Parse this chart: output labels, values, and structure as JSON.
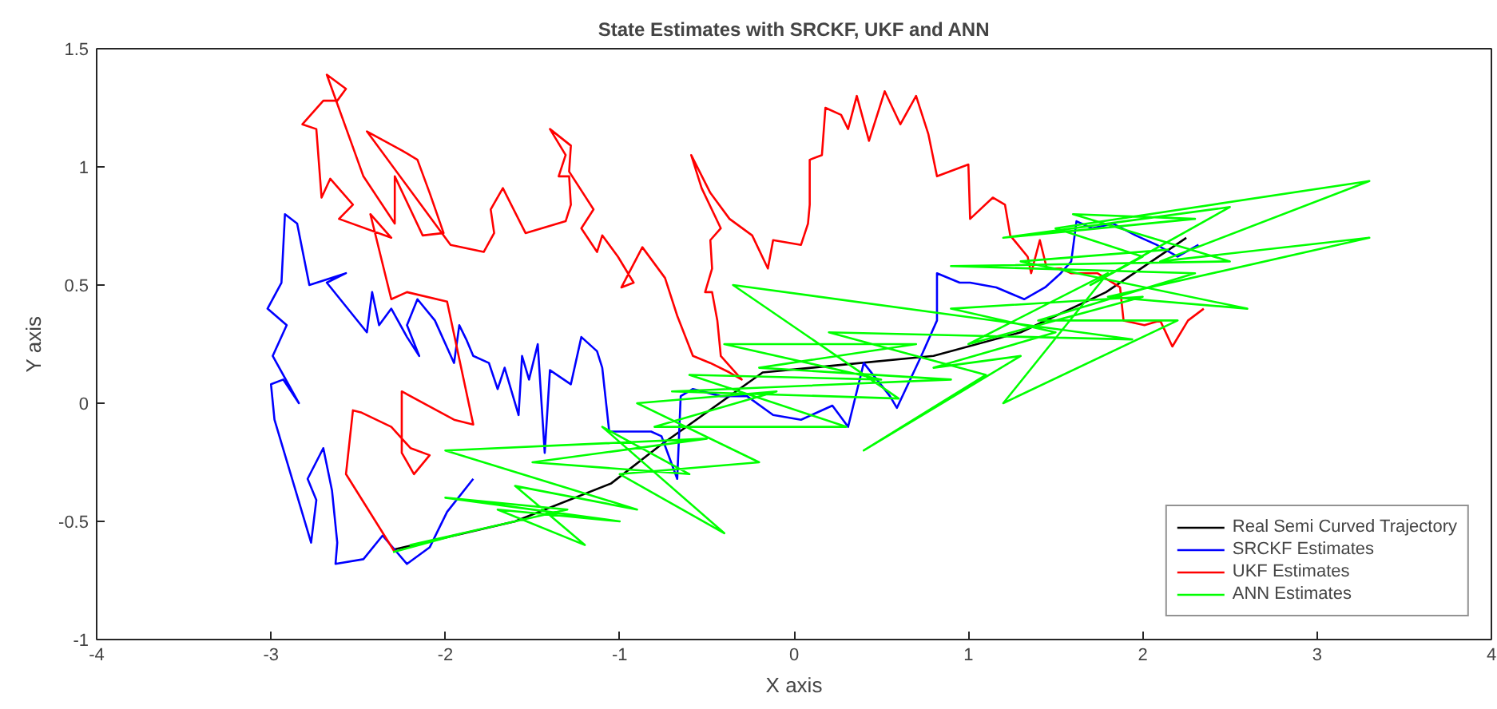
{
  "chart_data": {
    "type": "line",
    "title": "State Estimates with SRCKF, UKF and ANN",
    "xlabel": "X axis",
    "ylabel": "Y axis",
    "xlim": [
      -4,
      4
    ],
    "xticks": [
      -4,
      -3,
      -2,
      -1,
      0,
      1,
      2,
      3,
      4
    ],
    "ylim": [
      -1,
      1.5
    ],
    "yticks": [
      -1,
      -0.5,
      0,
      0.5,
      1,
      1.5
    ],
    "grid": false,
    "legend": "bottom right",
    "line_style": "solid",
    "series": [
      {
        "name": "Real Semi Curved Trajectory",
        "color": "#000000",
        "x": [
          -2.3,
          -1.6,
          -1.05,
          -0.77,
          -0.18,
          0.24,
          0.8,
          1.3,
          1.79,
          2.25
        ],
        "values": [
          -0.62,
          -0.5,
          -0.34,
          -0.18,
          0.13,
          0.16,
          0.2,
          0.3,
          0.47,
          0.7
        ]
      },
      {
        "name": "SRCKF Estimates",
        "color": "#0000ff",
        "x": [
          -1.84,
          -1.99,
          -2.09,
          -2.22,
          -2.36,
          -2.47,
          -2.63,
          -2.62,
          -2.65,
          -2.7,
          -2.79,
          -2.74,
          -2.77,
          -2.98,
          -3.0,
          -2.93,
          -2.84,
          -2.99,
          -2.91,
          -3.02,
          -2.94,
          -2.92,
          -2.85,
          -2.78,
          -2.57,
          -2.68,
          -2.45,
          -2.42,
          -2.38,
          -2.31,
          -2.22,
          -2.15,
          -2.22,
          -2.16,
          -2.06,
          -1.95,
          -1.92,
          -1.88,
          -1.84,
          -1.75,
          -1.7,
          -1.66,
          -1.58,
          -1.56,
          -1.52,
          -1.47,
          -1.43,
          -1.4,
          -1.28,
          -1.22,
          -1.13,
          -1.1,
          -1.06,
          -0.94,
          -0.82,
          -0.76,
          -0.67,
          -0.65,
          -0.58,
          -0.42,
          -0.27,
          -0.12,
          0.04,
          0.22,
          0.31,
          0.4,
          0.55,
          0.59,
          0.73,
          0.82,
          0.82,
          0.95,
          1.01,
          1.16,
          1.32,
          1.44,
          1.53,
          1.59,
          1.62,
          1.71,
          1.83,
          1.96,
          2.08,
          2.2,
          2.32
        ],
        "values": [
          -0.32,
          -0.46,
          -0.61,
          -0.68,
          -0.56,
          -0.66,
          -0.68,
          -0.59,
          -0.37,
          -0.19,
          -0.32,
          -0.41,
          -0.59,
          -0.07,
          0.08,
          0.1,
          0.0,
          0.2,
          0.33,
          0.4,
          0.51,
          0.8,
          0.76,
          0.5,
          0.55,
          0.51,
          0.3,
          0.47,
          0.33,
          0.4,
          0.28,
          0.2,
          0.33,
          0.44,
          0.35,
          0.17,
          0.33,
          0.27,
          0.2,
          0.17,
          0.06,
          0.15,
          -0.05,
          0.2,
          0.1,
          0.25,
          -0.21,
          0.14,
          0.08,
          0.28,
          0.22,
          0.15,
          -0.12,
          -0.12,
          -0.12,
          -0.14,
          -0.32,
          0.03,
          0.06,
          0.03,
          0.03,
          -0.05,
          -0.07,
          -0.01,
          -0.1,
          0.17,
          0.03,
          -0.02,
          0.2,
          0.35,
          0.55,
          0.51,
          0.51,
          0.49,
          0.44,
          0.49,
          0.55,
          0.6,
          0.77,
          0.74,
          0.76,
          0.71,
          0.67,
          0.62,
          0.67
        ]
      },
      {
        "name": "UKF Estimates",
        "color": "#ff0000",
        "x": [
          -2.29,
          -2.57,
          -2.53,
          -2.48,
          -2.31,
          -2.2,
          -2.09,
          -2.18,
          -2.25,
          -2.25,
          -1.95,
          -1.84,
          -1.99,
          -2.22,
          -2.31,
          -2.43,
          -2.31,
          -2.61,
          -2.53,
          -2.66,
          -2.71,
          -2.74,
          -2.82,
          -2.7,
          -2.62,
          -2.57,
          -2.68,
          -2.47,
          -2.29,
          -2.29,
          -2.13,
          -2.01,
          -2.09,
          -2.16,
          -2.25,
          -2.45,
          -1.97,
          -1.78,
          -1.72,
          -1.74,
          -1.67,
          -1.54,
          -1.31,
          -1.28,
          -1.29,
          -1.35,
          -1.31,
          -1.4,
          -1.28,
          -1.29,
          -1.15,
          -1.22,
          -1.13,
          -1.1,
          -1.01,
          -0.92,
          -0.99,
          -0.87,
          -0.74,
          -0.67,
          -0.58,
          -0.48,
          -0.37,
          -0.3,
          -0.42,
          -0.44,
          -0.47,
          -0.51,
          -0.47,
          -0.48,
          -0.42,
          -0.53,
          -0.59,
          -0.48,
          -0.37,
          -0.24,
          -0.15,
          -0.12,
          0.04,
          0.08,
          0.09,
          0.09,
          0.16,
          0.18,
          0.27,
          0.31,
          0.36,
          0.43,
          0.52,
          0.61,
          0.7,
          0.77,
          0.82,
          1.0,
          1.01,
          1.14,
          1.21,
          1.24,
          1.34,
          1.36,
          1.41,
          1.45,
          1.53,
          1.59,
          1.74,
          1.87,
          1.89,
          2.01,
          2.1,
          2.17,
          2.26,
          2.35
        ],
        "values": [
          -0.63,
          -0.3,
          -0.03,
          -0.04,
          -0.1,
          -0.19,
          -0.22,
          -0.3,
          -0.21,
          0.05,
          -0.07,
          -0.09,
          0.43,
          0.47,
          0.44,
          0.8,
          0.7,
          0.78,
          0.84,
          0.95,
          0.87,
          1.16,
          1.18,
          1.28,
          1.28,
          1.33,
          1.39,
          0.96,
          0.76,
          0.96,
          0.71,
          0.72,
          0.89,
          1.03,
          1.07,
          1.15,
          0.67,
          0.64,
          0.72,
          0.82,
          0.91,
          0.72,
          0.77,
          0.84,
          0.96,
          0.96,
          1.05,
          1.16,
          1.09,
          0.98,
          0.82,
          0.74,
          0.64,
          0.71,
          0.62,
          0.51,
          0.49,
          0.66,
          0.53,
          0.37,
          0.2,
          0.17,
          0.13,
          0.1,
          0.2,
          0.35,
          0.47,
          0.47,
          0.57,
          0.69,
          0.74,
          0.91,
          1.05,
          0.89,
          0.78,
          0.71,
          0.57,
          0.69,
          0.67,
          0.76,
          0.84,
          1.03,
          1.05,
          1.25,
          1.22,
          1.16,
          1.3,
          1.11,
          1.32,
          1.18,
          1.3,
          1.14,
          0.96,
          1.01,
          0.78,
          0.87,
          0.84,
          0.71,
          0.62,
          0.55,
          0.69,
          0.57,
          0.57,
          0.55,
          0.55,
          0.49,
          0.35,
          0.33,
          0.35,
          0.24,
          0.35,
          0.4
        ]
      },
      {
        "name": "ANN Estimates",
        "color": "#00ff00",
        "x": [
          -2.3,
          -1.9,
          -2.2,
          -1.3,
          -2.0,
          -1.0,
          -1.7,
          -1.2,
          -1.6,
          -0.9,
          -2.0,
          -0.5,
          -1.5,
          -0.6,
          -1.1,
          -0.4,
          -1.0,
          -0.2,
          -0.9,
          -0.1,
          -0.8,
          0.3,
          -0.6,
          0.5,
          -0.4,
          0.7,
          -0.2,
          0.9,
          -0.7,
          0.6,
          -0.35,
          1.94,
          0.2,
          1.1,
          0.4,
          1.3,
          0.8,
          1.5,
          0.9,
          2.0,
          1.0,
          1.8,
          1.2,
          2.2,
          1.4,
          2.3,
          0.9,
          2.5,
          1.6,
          2.3,
          1.2,
          2.5,
          1.7,
          2.0,
          1.5,
          3.3,
          2.1,
          3.3,
          1.8,
          2.6,
          1.3,
          2.15
        ],
        "values": [
          -0.63,
          -0.55,
          -0.6,
          -0.45,
          -0.4,
          -0.5,
          -0.45,
          -0.6,
          -0.35,
          -0.45,
          -0.2,
          -0.15,
          -0.25,
          -0.3,
          -0.1,
          -0.55,
          -0.3,
          -0.25,
          0.0,
          0.05,
          -0.1,
          -0.1,
          0.12,
          0.1,
          0.25,
          0.25,
          0.15,
          0.1,
          0.05,
          0.02,
          0.5,
          0.27,
          0.3,
          0.12,
          -0.2,
          0.2,
          0.15,
          0.3,
          0.4,
          0.45,
          0.25,
          0.55,
          0.0,
          0.35,
          0.35,
          0.55,
          0.58,
          0.6,
          0.8,
          0.78,
          0.7,
          0.83,
          0.5,
          0.62,
          0.74,
          0.94,
          0.6,
          0.7,
          0.45,
          0.4,
          0.6,
          0.65
        ]
      }
    ]
  }
}
